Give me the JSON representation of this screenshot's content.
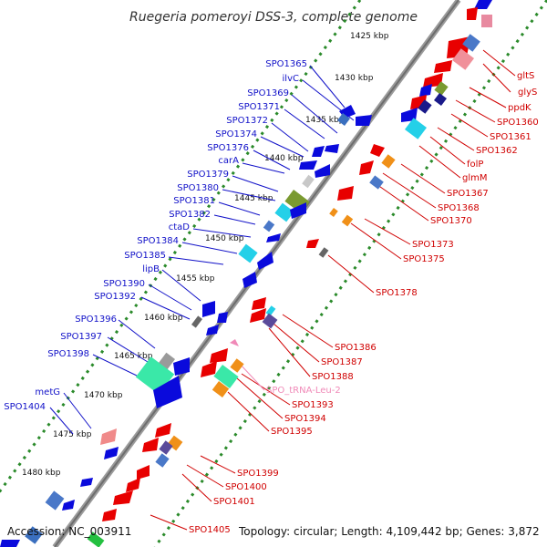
{
  "title": "Ruegeria pomeroyi DSS-3, complete genome",
  "footer": {
    "accession": "Accession: NC_003911",
    "summary": "Topology: circular; Length: 4,109,442 bp; Genes: 3,872"
  },
  "kbp_ticks": [
    "1425 kbp",
    "1430 kbp",
    "1435 kbp",
    "1440 kbp",
    "1445 kbp",
    "1450 kbp",
    "1455 kbp",
    "1460 kbp",
    "1465 kbp",
    "1470 kbp",
    "1475 kbp",
    "1480 kbp"
  ],
  "labels_left": [
    "SPO1365",
    "ilvC",
    "SPO1369",
    "SPO1371",
    "SPO1372",
    "SPO1374",
    "SPO1376",
    "carA",
    "SPO1379",
    "SPO1380",
    "SPO1381",
    "SPO1382",
    "ctaD",
    "SPO1384",
    "SPO1385",
    "lipB",
    "SPO1390",
    "SPO1392",
    "SPO1396",
    "SPO1397",
    "SPO1398",
    "metG",
    "SPO1404"
  ],
  "labels_right": [
    "gltS",
    "glyS",
    "ppdK",
    "SPO1360",
    "SPO1361",
    "SPO1362",
    "folP",
    "glmM",
    "SPO1367",
    "SPO1368",
    "SPO1370",
    "SPO1373",
    "SPO1375",
    "SPO1378",
    "SPO1386",
    "SPO1387",
    "SPO1388",
    "SPO_tRNA-Leu-2",
    "SPO1393",
    "SPO1394",
    "SPO1395",
    "SPO1399",
    "SPO1400",
    "SPO1401",
    "SPO1405"
  ],
  "colors": {
    "forward": "#0a0adc",
    "reverse": "#e80000",
    "label_blue": "#1010c8",
    "label_red": "#d00000",
    "trna": "#f08ab8",
    "backbone": "#888888",
    "tick_dots": "#2a8a2a"
  }
}
